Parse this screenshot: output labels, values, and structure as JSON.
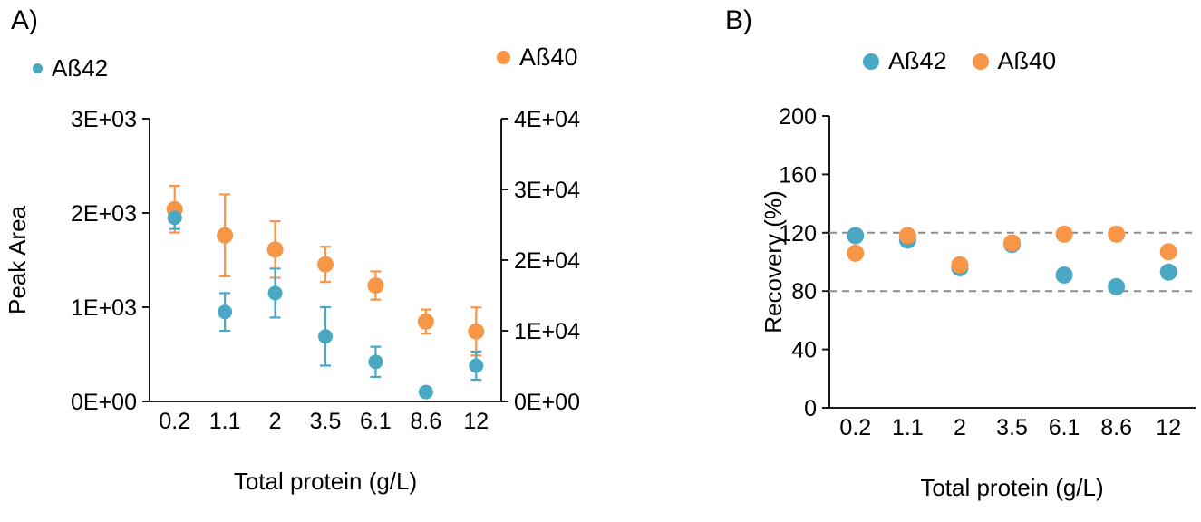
{
  "figure": {
    "background": "#ffffff"
  },
  "chart_data": [
    {
      "id": "panel-a",
      "type": "scatter",
      "panel_label": "A)",
      "xlabel": "Total protein (g/L)",
      "categories": [
        "0.2",
        "1.1",
        "2",
        "3.5",
        "6.1",
        "8.6",
        "12"
      ],
      "left_axis": {
        "label": "Peak Area",
        "min": 0,
        "max": 3000,
        "ticks": [
          "0E+00",
          "1E+03",
          "2E+03",
          "3E+03"
        ]
      },
      "right_axis": {
        "min": 0,
        "max": 40000,
        "ticks": [
          "0E+00",
          "1E+04",
          "2E+04",
          "3E+04",
          "4E+04"
        ]
      },
      "legend_position": "top-split",
      "grid": false,
      "series": [
        {
          "name": "Aß42",
          "axis": "left",
          "color": "#4aa8c5",
          "values": [
            1950,
            950,
            1150,
            690,
            420,
            100,
            380
          ],
          "errors": [
            120,
            200,
            260,
            310,
            160,
            0,
            150
          ]
        },
        {
          "name": "Aß40",
          "axis": "right",
          "color": "#f79646",
          "values": [
            27200,
            23500,
            21500,
            19400,
            16400,
            11300,
            9900
          ],
          "errors": [
            3300,
            5800,
            4000,
            2500,
            2000,
            1700,
            3400
          ]
        }
      ]
    },
    {
      "id": "panel-b",
      "type": "scatter",
      "panel_label": "B)",
      "xlabel": "Total protein (g/L)",
      "ylabel": "Recovery (%)",
      "categories": [
        "0.2",
        "1.1",
        "2",
        "3.5",
        "6.1",
        "8.6",
        "12"
      ],
      "y_axis": {
        "min": 0,
        "max": 200,
        "ticks": [
          0,
          40,
          80,
          120,
          160,
          200
        ]
      },
      "reference_lines": [
        120,
        80
      ],
      "reference_color": "#8c8c8c",
      "legend_position": "top-center",
      "grid": false,
      "series": [
        {
          "name": "Aß42",
          "color": "#4aa8c5",
          "values": [
            118,
            115,
            96,
            112,
            91,
            83,
            93
          ]
        },
        {
          "name": "Aß40",
          "color": "#f79646",
          "values": [
            106,
            118,
            98,
            113,
            119,
            119,
            107
          ]
        }
      ]
    }
  ]
}
